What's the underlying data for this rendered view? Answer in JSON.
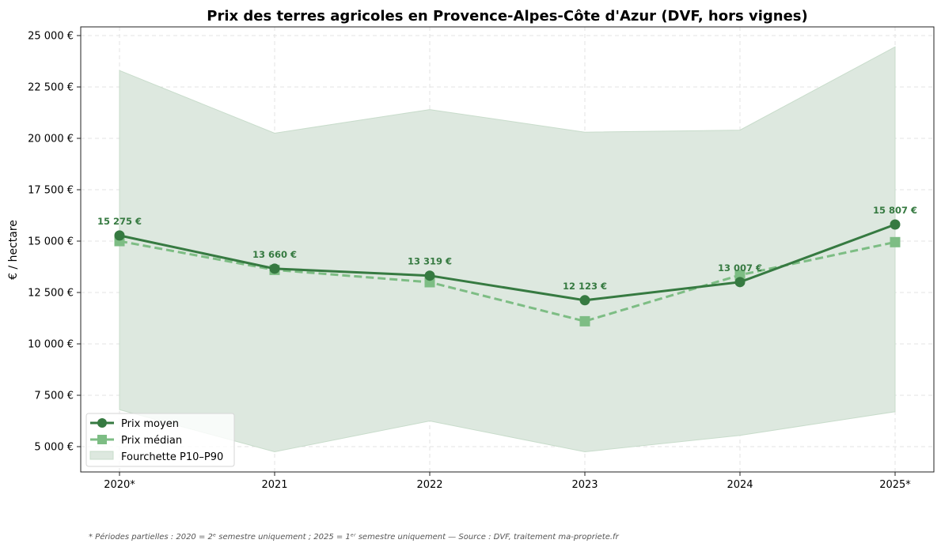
{
  "chart_data": {
    "type": "line",
    "title": "Prix des terres agricoles en Provence-Alpes-Côte d'Azur (DVF, hors vignes)",
    "xlabel": "",
    "ylabel": "€ / hectare",
    "categories": [
      "2020*",
      "2021",
      "2022",
      "2023",
      "2024",
      "2025*"
    ],
    "ylim": [
      3800,
      25400
    ],
    "yticks": [
      5000,
      7500,
      10000,
      12500,
      15000,
      17500,
      20000,
      22500,
      25000
    ],
    "ytick_labels": [
      "5 000 €",
      "7 500 €",
      "10 000 €",
      "12 500 €",
      "15 000 €",
      "17 500 €",
      "20 000 €",
      "22 500 €",
      "25 000 €"
    ],
    "grid": true,
    "legend_position": "bottom-left",
    "series": [
      {
        "name": "Prix moyen",
        "values": [
          15275,
          13660,
          13319,
          12123,
          13007,
          15807
        ],
        "color": "#367a41",
        "style": "solid",
        "marker": "circle",
        "data_labels": [
          "15 275 €",
          "13 660 €",
          "13 319 €",
          "12 123 €",
          "13 007 €",
          "15 807 €"
        ]
      },
      {
        "name": "Prix médian",
        "values": [
          15000,
          13600,
          13000,
          11100,
          13350,
          14950
        ],
        "color": "#7dbd84",
        "style": "dashed",
        "marker": "square"
      }
    ],
    "band": {
      "name": "Fourchette P10–P90",
      "p10": [
        6800,
        4750,
        6250,
        4750,
        5550,
        6700
      ],
      "p90": [
        23300,
        20250,
        21400,
        20300,
        20400,
        24450
      ],
      "color": "#dde8df"
    },
    "footnote": "* Périodes partielles : 2020 = 2ᵉ semestre uniquement ; 2025 = 1ᵉʳ semestre uniquement — Source : DVF, traitement ma-propriete.fr"
  }
}
